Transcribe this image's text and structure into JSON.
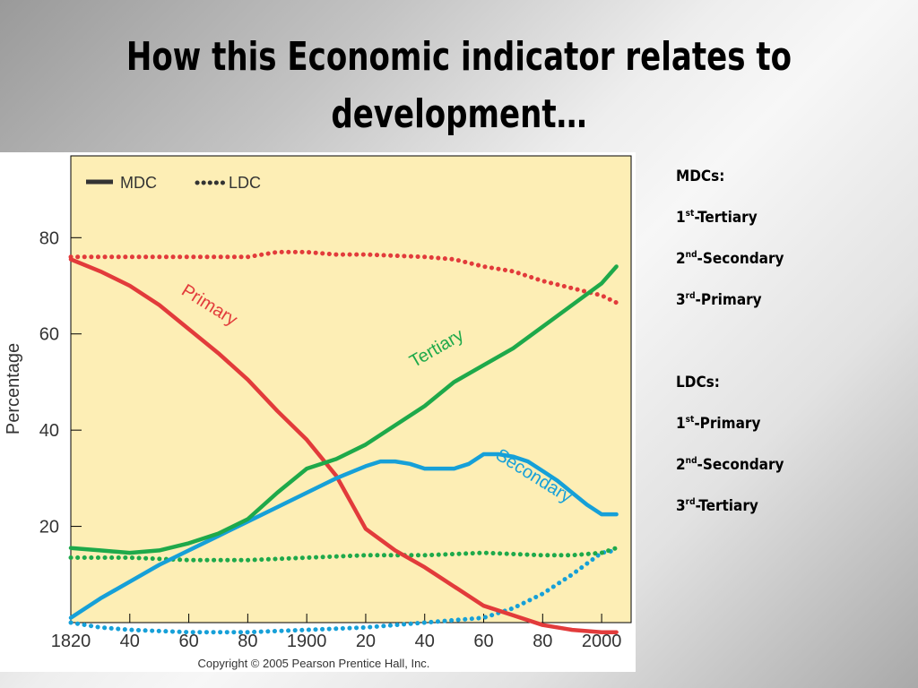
{
  "title": "How this Economic indicator relates to development…",
  "notes": {
    "mdc_heading": "MDCs:",
    "mdc_items": [
      {
        "num": "1",
        "ord": "st",
        "text": "-Tertiary"
      },
      {
        "num": "2",
        "ord": "nd",
        "text": "-Secondary"
      },
      {
        "num": "3",
        "ord": "rd",
        "text": "-Primary"
      }
    ],
    "ldc_heading": "LDCs:",
    "ldc_items": [
      {
        "num": "1",
        "ord": "st",
        "text": "-Primary"
      },
      {
        "num": "2",
        "ord": "nd",
        "text": "-Secondary"
      },
      {
        "num": "3",
        "ord": "rd",
        "text": "-Tertiary"
      }
    ]
  },
  "copyright": "Copyright © 2005 Pearson Prentice Hall, Inc.",
  "colors": {
    "plot_background": "#fdeeb5",
    "primary": "#e23b3b",
    "secondary": "#16a0d8",
    "tertiary": "#1ea94a",
    "legend_mdc": "#333333",
    "legend_ldc": "#d83a3a"
  },
  "chart_data": {
    "type": "line",
    "xlabel": "",
    "ylabel": "Percentage",
    "xlim": [
      1820,
      2010
    ],
    "ylim": [
      0,
      97
    ],
    "x_ticks": [
      1820,
      1840,
      1860,
      1880,
      1900,
      1920,
      1940,
      1960,
      1980,
      2000
    ],
    "x_tick_labels": [
      "1820",
      "40",
      "60",
      "80",
      "1900",
      "20",
      "40",
      "60",
      "80",
      "2000"
    ],
    "y_ticks": [
      20,
      40,
      60,
      80
    ],
    "y_tick_labels": [
      "20",
      "40",
      "60",
      "80"
    ],
    "grid": false,
    "legend": {
      "position": "top-left",
      "entries": [
        {
          "label": "MDC",
          "style": "solid"
        },
        {
          "label": "LDC",
          "style": "dotted"
        }
      ]
    },
    "series": [
      {
        "name": "Primary",
        "group": "MDC",
        "color": "#e23b3b",
        "label_annotation": {
          "text": "Primary",
          "at": [
            1866,
            65
          ],
          "angle": 32
        },
        "x": [
          1820,
          1830,
          1840,
          1850,
          1860,
          1870,
          1880,
          1890,
          1900,
          1910,
          1915,
          1920,
          1930,
          1940,
          1950,
          1960,
          1970,
          1980,
          1990,
          2000,
          2005
        ],
        "y": [
          75.5,
          73,
          70,
          66,
          61,
          56,
          50.5,
          44,
          38,
          30.5,
          25,
          19.5,
          15,
          11.5,
          7.5,
          3.5,
          1.5,
          -0.5,
          -1.5,
          -2,
          -2
        ]
      },
      {
        "name": "Secondary",
        "group": "MDC",
        "color": "#16a0d8",
        "label_annotation": {
          "text": "Secondary",
          "at": [
            1976,
            29.5
          ],
          "angle": 32
        },
        "x": [
          1820,
          1830,
          1840,
          1850,
          1860,
          1870,
          1880,
          1890,
          1900,
          1910,
          1920,
          1925,
          1930,
          1935,
          1940,
          1945,
          1950,
          1955,
          1960,
          1965,
          1970,
          1975,
          1980,
          1985,
          1990,
          1995,
          2000,
          2005
        ],
        "y": [
          1,
          5,
          8.5,
          12,
          15,
          18,
          21,
          24,
          27,
          30,
          32.5,
          33.5,
          33.5,
          33,
          32,
          32,
          32,
          33,
          35,
          35,
          34.5,
          33.5,
          31.5,
          29.5,
          27,
          24.5,
          22.5,
          22.5
        ]
      },
      {
        "name": "Tertiary",
        "group": "MDC",
        "color": "#1ea94a",
        "label_annotation": {
          "text": "Tertiary",
          "at": [
            1945,
            56
          ],
          "angle": -30
        },
        "x": [
          1820,
          1830,
          1840,
          1850,
          1860,
          1870,
          1880,
          1890,
          1900,
          1910,
          1920,
          1930,
          1940,
          1950,
          1960,
          1970,
          1980,
          1990,
          2000,
          2005
        ],
        "y": [
          15.5,
          15,
          14.5,
          15,
          16.5,
          18.5,
          21.5,
          27,
          32,
          34,
          37,
          41,
          45,
          50,
          53.5,
          57,
          61.5,
          66,
          70.5,
          74
        ]
      },
      {
        "name": "Primary",
        "group": "LDC",
        "color": "#e23b3b",
        "x": [
          1820,
          1840,
          1860,
          1880,
          1890,
          1900,
          1910,
          1920,
          1940,
          1950,
          1960,
          1970,
          1980,
          1990,
          2000,
          2005
        ],
        "y": [
          76,
          76,
          76,
          76,
          77,
          77,
          76.5,
          76.5,
          76,
          75.5,
          74,
          73,
          71,
          69.5,
          68,
          66.5
        ]
      },
      {
        "name": "Secondary",
        "group": "LDC",
        "color": "#16a0d8",
        "x": [
          1820,
          1830,
          1840,
          1860,
          1880,
          1900,
          1920,
          1940,
          1960,
          1970,
          1980,
          1990,
          2000,
          2005
        ],
        "y": [
          0,
          -1,
          -1.5,
          -2,
          -2,
          -1.5,
          -1,
          0,
          1,
          3,
          6,
          10,
          14.5,
          15
        ]
      },
      {
        "name": "Tertiary",
        "group": "LDC",
        "color": "#1ea94a",
        "x": [
          1820,
          1840,
          1860,
          1880,
          1900,
          1920,
          1940,
          1960,
          1980,
          1990,
          2000,
          2005
        ],
        "y": [
          13.5,
          13.5,
          13,
          13,
          13.5,
          14,
          14,
          14.5,
          14,
          14,
          14.5,
          15.5
        ]
      }
    ]
  }
}
